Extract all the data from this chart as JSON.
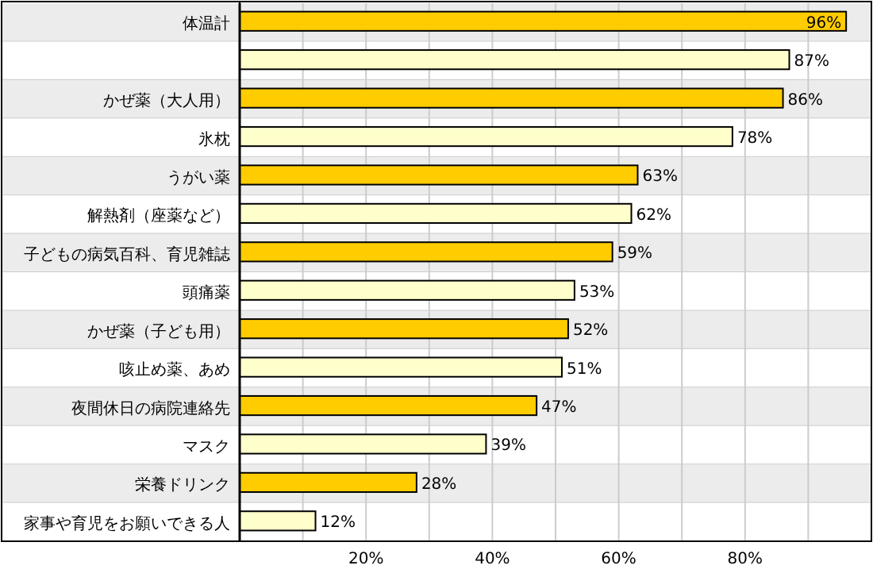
{
  "chart_data": {
    "type": "bar",
    "orientation": "horizontal",
    "categories": [
      "体温計",
      null,
      "かぜ薬（大人用）",
      "氷枕",
      "うがい薬",
      "解熱剤（座薬など）",
      "子どもの病気百科、育児雑誌",
      "頭痛薬",
      "かぜ薬（子ども用）",
      "咳止め薬、あめ",
      "夜間休日の病院連絡先",
      "マスク",
      "栄養ドリンク",
      "家事や育児をお願いできる人"
    ],
    "values": [
      96,
      87,
      86,
      78,
      63,
      62,
      59,
      53,
      52,
      51,
      47,
      39,
      28,
      12
    ],
    "value_labels": [
      "96%",
      "87%",
      "86%",
      "78%",
      "63%",
      "62%",
      "59%",
      "53%",
      "52%",
      "51%",
      "47%",
      "39%",
      "28%",
      "12%"
    ],
    "colors": [
      "#ffcc00",
      "#ffffcc",
      "#ffcc00",
      "#ffffcc",
      "#ffcc00",
      "#ffffcc",
      "#ffcc00",
      "#ffffcc",
      "#ffcc00",
      "#ffffcc",
      "#ffcc00",
      "#ffffcc",
      "#ffcc00",
      "#ffffcc"
    ],
    "xlim": [
      0,
      100
    ],
    "xticks": [
      {
        "value": 10,
        "label": null
      },
      {
        "value": 20,
        "label": "20%"
      },
      {
        "value": 30,
        "label": null
      },
      {
        "value": 40,
        "label": "40%"
      },
      {
        "value": 50,
        "label": null
      },
      {
        "value": 60,
        "label": "60%"
      },
      {
        "value": 70,
        "label": null
      },
      {
        "value": 80,
        "label": "80%"
      },
      {
        "value": 90,
        "label": null
      }
    ],
    "grid": "x"
  }
}
